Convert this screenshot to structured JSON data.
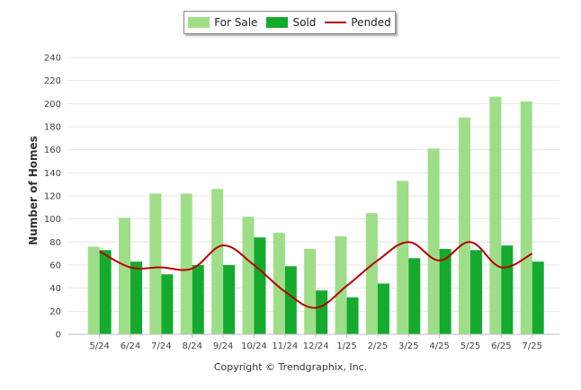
{
  "legend": {
    "for_sale": "For Sale",
    "sold": "Sold",
    "pended": "Pended"
  },
  "copyright": "Copyright © Trendgraphix, Inc.",
  "colors": {
    "for_sale": "#9ede89",
    "sold": "#14aa2e",
    "pended": "#b80000",
    "grid": "#e6e6e6"
  },
  "chart_data": {
    "type": "bar",
    "ylabel": "Number of Homes",
    "ylim": [
      0,
      240
    ],
    "yticks": [
      0,
      20,
      40,
      60,
      80,
      100,
      120,
      140,
      160,
      180,
      200,
      220,
      240
    ],
    "grid": true,
    "legend_position": "top",
    "categories": [
      "5/24",
      "6/24",
      "7/24",
      "8/24",
      "9/24",
      "10/24",
      "11/24",
      "12/24",
      "1/25",
      "2/25",
      "3/25",
      "4/25",
      "5/25",
      "6/25",
      "7/25"
    ],
    "series": [
      {
        "name": "For Sale",
        "type": "bar",
        "values": [
          76,
          101,
          122,
          122,
          126,
          102,
          88,
          74,
          85,
          105,
          133,
          161,
          188,
          206,
          202
        ]
      },
      {
        "name": "Sold",
        "type": "bar",
        "values": [
          73,
          63,
          52,
          60,
          60,
          84,
          59,
          38,
          32,
          44,
          66,
          74,
          73,
          77,
          63
        ]
      },
      {
        "name": "Pended",
        "type": "line",
        "values": [
          72,
          58,
          58,
          57,
          77,
          60,
          37,
          23,
          42,
          64,
          80,
          64,
          80,
          58,
          70
        ]
      }
    ]
  }
}
